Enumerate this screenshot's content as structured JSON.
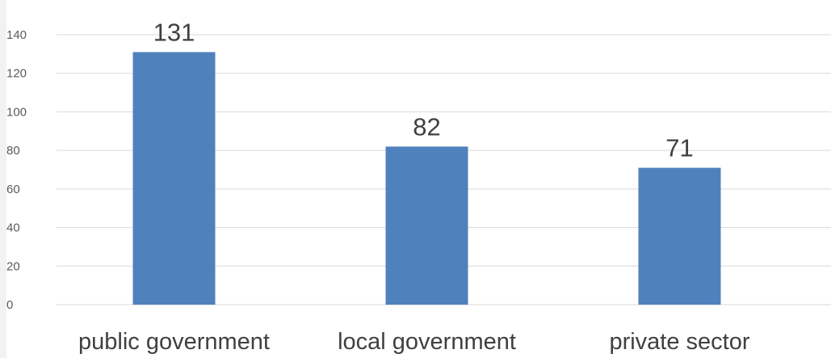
{
  "chart_data": {
    "type": "bar",
    "title": "",
    "xlabel": "",
    "ylabel": "",
    "categories": [
      "public government",
      "local government",
      "private sector"
    ],
    "values": [
      131,
      82,
      71
    ],
    "ylim": [
      0,
      140
    ],
    "yticks": [
      0,
      20,
      40,
      60,
      80,
      100,
      120,
      140
    ],
    "grid": true,
    "legend": "none",
    "data_labels": true,
    "colors": {
      "bar": "#4f81bd",
      "grid": "#d9d9d9",
      "tick_text": "#595959",
      "label_text": "#404040"
    }
  }
}
